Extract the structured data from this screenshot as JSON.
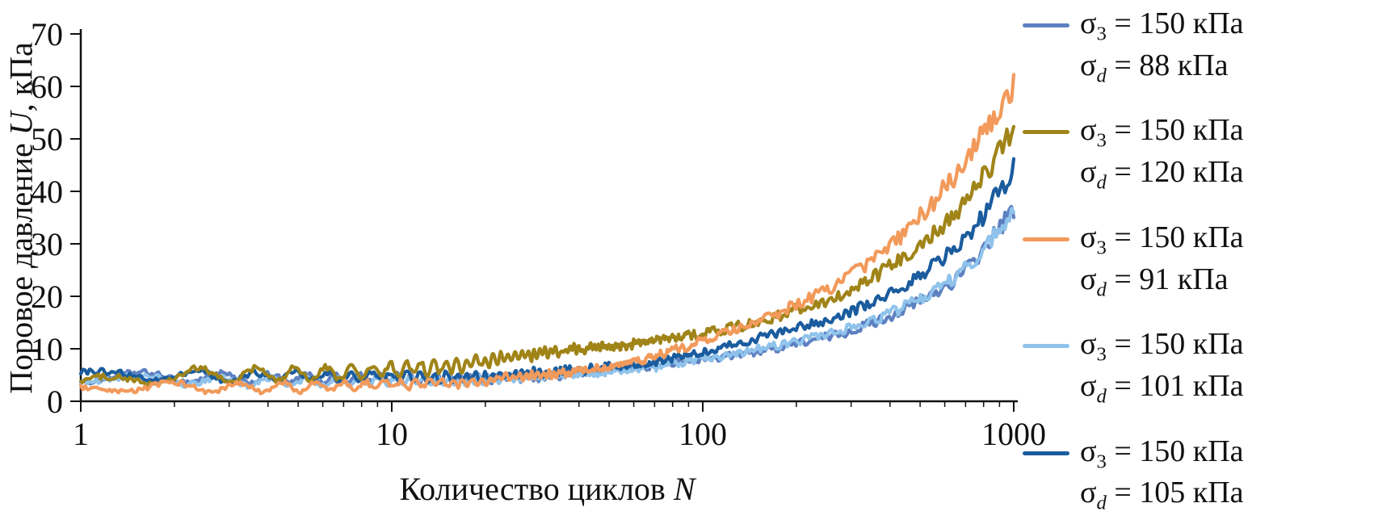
{
  "figure": {
    "background": "#ffffff",
    "text_color": "#111111",
    "axis_color": "#111111"
  },
  "axes": {
    "y_label_prefix": "Поровое давление ",
    "y_label_var": "U",
    "y_label_suffix": ", кПа",
    "x_label_prefix": "Количество циклов ",
    "x_label_var": "N"
  },
  "chart_data": {
    "type": "line",
    "title": "",
    "xlabel": "Количество циклов N",
    "ylabel": "Поровое давление U, кПа",
    "x_scale": "log",
    "xlim": [
      1,
      1000
    ],
    "ylim": [
      0,
      70
    ],
    "x_ticks": [
      "1",
      "10",
      "100",
      "1000"
    ],
    "y_ticks": [
      0,
      10,
      20,
      30,
      40,
      50,
      60,
      70
    ],
    "grid": false,
    "legend_position": "right",
    "series": [
      {
        "name": "σ3 = 150 кПа, σd = 88 кПа",
        "color": "#5d80c1",
        "osc_amp": 0.9,
        "x": [
          1,
          2,
          3,
          5,
          8,
          10,
          15,
          20,
          30,
          50,
          70,
          100,
          150,
          200,
          300,
          500,
          700,
          1000
        ],
        "y": [
          4.5,
          4.6,
          4.4,
          4.3,
          4.4,
          4.5,
          4.2,
          4.3,
          4.8,
          5.8,
          6.8,
          8.0,
          9.5,
          11.0,
          13.5,
          19.0,
          25.0,
          36.5
        ],
        "legend": {
          "sigma": "σ",
          "line1_sub": "3",
          "line1_rest": " = 150 кПа",
          "line2_sub": "d",
          "line2_rest": " = 88 кПа"
        }
      },
      {
        "name": "σ3 = 150 кПа, σd = 120 кПа",
        "color": "#a08418",
        "osc_amp": 1.3,
        "x": [
          1,
          2,
          3,
          5,
          8,
          10,
          15,
          20,
          30,
          50,
          70,
          100,
          150,
          200,
          300,
          500,
          700,
          1000
        ],
        "y": [
          3.0,
          4.8,
          5.0,
          5.2,
          5.5,
          6.0,
          6.5,
          7.5,
          9.0,
          10.5,
          11.5,
          13.0,
          15.0,
          17.5,
          21.0,
          30.0,
          38.0,
          52.0
        ],
        "legend": {
          "sigma": "σ",
          "line1_sub": "3",
          "line1_rest": " = 150 кПа",
          "line2_sub": "d",
          "line2_rest": " = 120 кПа"
        }
      },
      {
        "name": "σ3 = 150 кПа, σd = 91 кПа",
        "color": "#f29a5b",
        "osc_amp": 0.9,
        "x": [
          1,
          2,
          3,
          5,
          8,
          10,
          15,
          20,
          30,
          50,
          70,
          100,
          150,
          200,
          300,
          500,
          700,
          1000
        ],
        "y": [
          2.5,
          2.8,
          2.5,
          2.7,
          3.0,
          3.2,
          3.5,
          4.0,
          5.0,
          6.5,
          8.5,
          11.5,
          15.0,
          18.5,
          24.0,
          35.0,
          46.0,
          60.0
        ],
        "legend": {
          "sigma": "σ",
          "line1_sub": "3",
          "line1_rest": " = 150 кПа",
          "line2_sub": "d",
          "line2_rest": " = 91 кПа"
        }
      },
      {
        "name": "σ3 = 150 кПа, σd = 101 кПа",
        "color": "#8fc3eb",
        "osc_amp": 0.8,
        "x": [
          1,
          2,
          3,
          5,
          8,
          10,
          15,
          20,
          30,
          50,
          70,
          100,
          150,
          200,
          300,
          500,
          700,
          1000
        ],
        "y": [
          4.3,
          4.0,
          3.8,
          3.6,
          3.8,
          4.0,
          4.0,
          4.2,
          4.8,
          5.5,
          6.5,
          8.0,
          10.0,
          11.5,
          14.0,
          19.5,
          25.5,
          36.0
        ],
        "legend": {
          "sigma": "σ",
          "line1_sub": "3",
          "line1_rest": " = 150 кПа",
          "line2_sub": "d",
          "line2_rest": " = 101 кПа"
        }
      },
      {
        "name": "σ3 = 150 кПа, σd = 105 кПа",
        "color": "#1a5c9e",
        "osc_amp": 0.9,
        "x": [
          1,
          2,
          3,
          5,
          8,
          10,
          15,
          20,
          30,
          50,
          70,
          100,
          150,
          200,
          300,
          500,
          700,
          1000
        ],
        "y": [
          4.8,
          5.0,
          4.6,
          4.8,
          4.6,
          4.8,
          4.5,
          4.8,
          5.5,
          6.5,
          7.5,
          9.5,
          12.0,
          14.0,
          17.0,
          24.0,
          31.0,
          44.0
        ],
        "legend": {
          "sigma": "σ",
          "line1_sub": "3",
          "line1_rest": " = 150 кПа",
          "line2_sub": "d",
          "line2_rest": " = 105 кПа"
        }
      }
    ]
  }
}
